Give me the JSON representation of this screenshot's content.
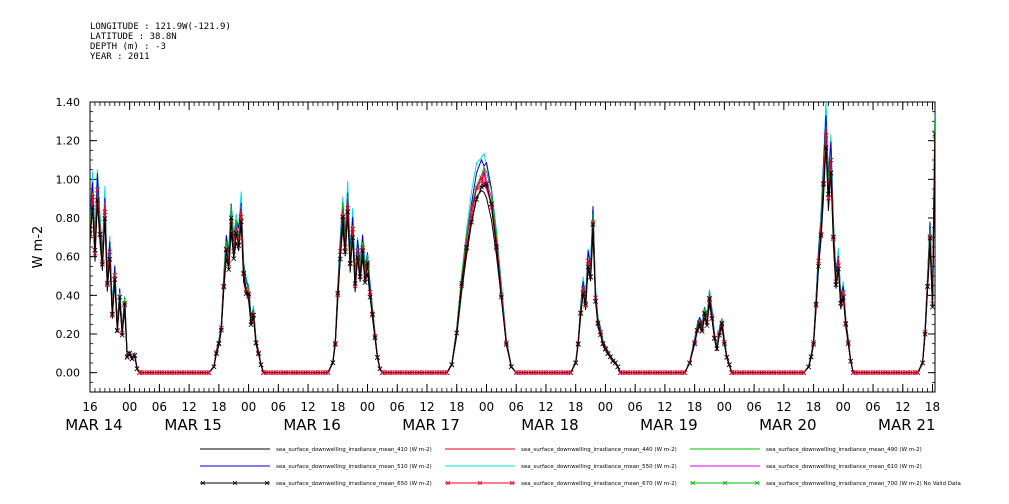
{
  "info": {
    "longitude": "LONGITUDE : 121.9W(-121.9)",
    "latitude": "LATITUDE : 38.8N",
    "depth": "DEPTH (m) : -3",
    "year": "YEAR : 2011"
  },
  "chart_data": {
    "type": "line",
    "title": "",
    "xlabel": "",
    "ylabel": "W m-2",
    "x_range_hours": [
      16,
      186.5
    ],
    "ylim": [
      -0.1,
      1.4
    ],
    "yticks": [
      0.0,
      0.2,
      0.4,
      0.6,
      0.8,
      1.0,
      1.2,
      1.4
    ],
    "ytick_labels": [
      "0.00",
      "0.20",
      "0.40",
      "0.60",
      "0.80",
      "1.00",
      "1.20",
      "1.40"
    ],
    "hour_ticks": [
      16,
      24,
      30,
      36,
      42,
      48,
      54,
      60,
      66,
      72,
      78,
      84,
      90,
      96,
      102,
      108,
      114,
      120,
      126,
      132,
      138,
      144,
      150,
      156,
      162,
      168,
      174,
      180,
      186
    ],
    "hour_tick_labels": [
      "16",
      "00",
      "06",
      "12",
      "18",
      "00",
      "06",
      "12",
      "18",
      "00",
      "06",
      "12",
      "18",
      "00",
      "06",
      "12",
      "18",
      "00",
      "06",
      "12",
      "18",
      "00",
      "06",
      "12",
      "18",
      "00",
      "06",
      "12",
      "18"
    ],
    "date_labels": [
      {
        "hour": 16,
        "text": "MAR 14"
      },
      {
        "hour": 36,
        "text": "MAR 15"
      },
      {
        "hour": 60,
        "text": "MAR 16"
      },
      {
        "hour": 84,
        "text": "MAR 17"
      },
      {
        "hour": 108,
        "text": "MAR 18"
      },
      {
        "hour": 132,
        "text": "MAR 19"
      },
      {
        "hour": 156,
        "text": "MAR 20"
      },
      {
        "hour": 180,
        "text": "MAR 21"
      }
    ],
    "base_series_points": [
      [
        16,
        0.7
      ],
      [
        16.5,
        0.88
      ],
      [
        17,
        0.62
      ],
      [
        17.5,
        0.9
      ],
      [
        18,
        0.72
      ],
      [
        18.5,
        0.55
      ],
      [
        19,
        0.82
      ],
      [
        19.5,
        0.45
      ],
      [
        20,
        0.6
      ],
      [
        20.5,
        0.3
      ],
      [
        21,
        0.48
      ],
      [
        21.5,
        0.22
      ],
      [
        22,
        0.38
      ],
      [
        22.5,
        0.2
      ],
      [
        23,
        0.35
      ],
      [
        23.5,
        0.08
      ],
      [
        24,
        0.1
      ],
      [
        24.5,
        0.07
      ],
      [
        25,
        0.09
      ],
      [
        25.5,
        0.02
      ],
      [
        26,
        0.0
      ],
      [
        40,
        0.0
      ],
      [
        41,
        0.03
      ],
      [
        41.5,
        0.1
      ],
      [
        42,
        0.15
      ],
      [
        42.5,
        0.22
      ],
      [
        43,
        0.45
      ],
      [
        43.5,
        0.62
      ],
      [
        44,
        0.55
      ],
      [
        44.5,
        0.78
      ],
      [
        45,
        0.6
      ],
      [
        45.5,
        0.72
      ],
      [
        46,
        0.65
      ],
      [
        46.5,
        0.8
      ],
      [
        47,
        0.5
      ],
      [
        47.5,
        0.42
      ],
      [
        48,
        0.4
      ],
      [
        48.5,
        0.25
      ],
      [
        49,
        0.3
      ],
      [
        49.5,
        0.15
      ],
      [
        50,
        0.1
      ],
      [
        50.5,
        0.04
      ],
      [
        51,
        0.0
      ],
      [
        64,
        0.0
      ],
      [
        65,
        0.05
      ],
      [
        65.5,
        0.15
      ],
      [
        66,
        0.4
      ],
      [
        66.5,
        0.6
      ],
      [
        67,
        0.8
      ],
      [
        67.5,
        0.62
      ],
      [
        68,
        0.85
      ],
      [
        68.5,
        0.55
      ],
      [
        69,
        0.72
      ],
      [
        69.5,
        0.45
      ],
      [
        70,
        0.6
      ],
      [
        70.5,
        0.5
      ],
      [
        71,
        0.62
      ],
      [
        71.5,
        0.48
      ],
      [
        72,
        0.55
      ],
      [
        72.5,
        0.4
      ],
      [
        73,
        0.3
      ],
      [
        73.5,
        0.18
      ],
      [
        74,
        0.08
      ],
      [
        74.5,
        0.02
      ],
      [
        75,
        0.0
      ],
      [
        88,
        0.0
      ],
      [
        89,
        0.04
      ],
      [
        90,
        0.2
      ],
      [
        91,
        0.45
      ],
      [
        92,
        0.65
      ],
      [
        93,
        0.8
      ],
      [
        94,
        0.92
      ],
      [
        95,
        0.96
      ],
      [
        95.5,
        0.98
      ],
      [
        96,
        0.95
      ],
      [
        97,
        0.85
      ],
      [
        98,
        0.65
      ],
      [
        99,
        0.4
      ],
      [
        100,
        0.15
      ],
      [
        101,
        0.03
      ],
      [
        102,
        0.0
      ],
      [
        113,
        0.0
      ],
      [
        114,
        0.05
      ],
      [
        114.5,
        0.15
      ],
      [
        115,
        0.3
      ],
      [
        115.5,
        0.42
      ],
      [
        116,
        0.35
      ],
      [
        116.5,
        0.55
      ],
      [
        117,
        0.5
      ],
      [
        117.5,
        0.75
      ],
      [
        118,
        0.38
      ],
      [
        118.5,
        0.25
      ],
      [
        119,
        0.2
      ],
      [
        119.5,
        0.15
      ],
      [
        120,
        0.12
      ],
      [
        120.5,
        0.1
      ],
      [
        121,
        0.08
      ],
      [
        121.5,
        0.06
      ],
      [
        122,
        0.05
      ],
      [
        122.5,
        0.03
      ],
      [
        123,
        0.0
      ],
      [
        136,
        0.0
      ],
      [
        137,
        0.05
      ],
      [
        138,
        0.15
      ],
      [
        138.5,
        0.22
      ],
      [
        139,
        0.25
      ],
      [
        139.5,
        0.22
      ],
      [
        140,
        0.3
      ],
      [
        140.5,
        0.25
      ],
      [
        141,
        0.38
      ],
      [
        141.5,
        0.28
      ],
      [
        142,
        0.18
      ],
      [
        142.5,
        0.12
      ],
      [
        143,
        0.2
      ],
      [
        143.5,
        0.25
      ],
      [
        144,
        0.15
      ],
      [
        144.5,
        0.08
      ],
      [
        145,
        0.04
      ],
      [
        145.5,
        0.0
      ],
      [
        160,
        0.0
      ],
      [
        161,
        0.03
      ],
      [
        161.5,
        0.08
      ],
      [
        162,
        0.15
      ],
      [
        162.5,
        0.35
      ],
      [
        163,
        0.55
      ],
      [
        163.5,
        0.72
      ],
      [
        164,
        0.95
      ],
      [
        164.5,
        1.2
      ],
      [
        165,
        0.9
      ],
      [
        165.5,
        1.05
      ],
      [
        166,
        0.7
      ],
      [
        166.5,
        0.45
      ],
      [
        167,
        0.55
      ],
      [
        167.5,
        0.35
      ],
      [
        168,
        0.4
      ],
      [
        168.5,
        0.25
      ],
      [
        169,
        0.15
      ],
      [
        169.5,
        0.06
      ],
      [
        170,
        0.0
      ],
      [
        183,
        0.0
      ],
      [
        184,
        0.05
      ],
      [
        184.5,
        0.2
      ],
      [
        185,
        0.45
      ],
      [
        185.5,
        0.68
      ],
      [
        186,
        0.35
      ],
      [
        186.5,
        1.2
      ]
    ],
    "series": [
      {
        "name": "sea_surface_downwelling_irradiance_mean_410 (W m-2)",
        "color": "#000000",
        "scale": 0.96,
        "marker": "none"
      },
      {
        "name": "sea_surface_downwelling_irradiance_mean_440 (W m-2)",
        "color": "#e4002b",
        "scale": 1.03,
        "marker": "none"
      },
      {
        "name": "sea_surface_downwelling_irradiance_mean_490 (W m-2)",
        "color": "#00c000",
        "scale": 1.08,
        "marker": "none"
      },
      {
        "name": "sea_surface_downwelling_irradiance_mean_510 (W m-2)",
        "color": "#0000d0",
        "scale": 1.12,
        "marker": "none"
      },
      {
        "name": "sea_surface_downwelling_irradiance_mean_550 (W m-2)",
        "color": "#00e0e0",
        "scale": 1.15,
        "marker": "none"
      },
      {
        "name": "sea_surface_downwelling_irradiance_mean_610 (W m-2)",
        "color": "#e000e0",
        "scale": 1.06,
        "marker": "none"
      },
      {
        "name": "sea_surface_downwelling_irradiance_mean_650 (W m-2)",
        "color": "#000000",
        "scale": 1.0,
        "marker": "x"
      },
      {
        "name": "sea_surface_downwelling_irradiance_mean_670 (W m-2)",
        "color": "#e4002b",
        "scale": 1.02,
        "marker": "x"
      },
      {
        "name": "sea_surface_downwelling_irradiance_mean_700 (W m-2) No Valid Data",
        "color": "#00c000",
        "scale": 0,
        "marker": "x"
      }
    ]
  }
}
